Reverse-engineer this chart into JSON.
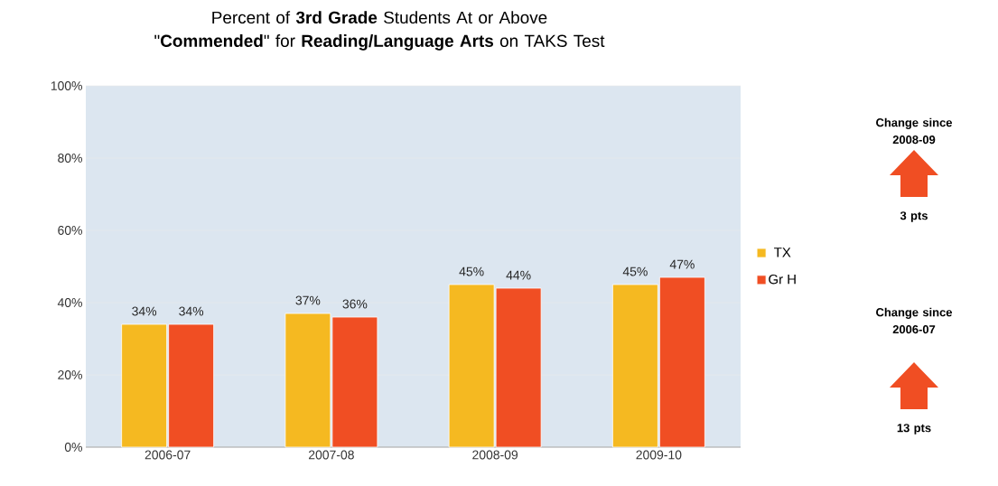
{
  "chart_data": {
    "type": "bar",
    "title": "Percent of **3rd Grade** Students At or Above \"**Commended**\" for **Reading/Language Arts** on TAKS Test",
    "categories": [
      "2006-07",
      "2007-08",
      "2008-09",
      "2009-10"
    ],
    "series": [
      {
        "name": "TX",
        "color": "#f5b921",
        "values": [
          34,
          37,
          45,
          45
        ],
        "value_labels": [
          "34%",
          "37%",
          "45%",
          "45%"
        ]
      },
      {
        "name": "Gr H",
        "color": "#f04e23",
        "values": [
          34,
          36,
          44,
          47
        ],
        "value_labels": [
          "34%",
          "36%",
          "44%",
          "47%"
        ]
      }
    ],
    "ylim": [
      0,
      100
    ],
    "yticks": [
      {
        "value": 0,
        "label": "0%"
      },
      {
        "value": 20,
        "label": "20%"
      },
      {
        "value": 40,
        "label": "40%"
      },
      {
        "value": 60,
        "label": "60%"
      },
      {
        "value": 80,
        "label": "80%"
      },
      {
        "value": 100,
        "label": "100%"
      }
    ],
    "grid": "y",
    "legend": "right",
    "annotations": [
      "Change since 2008-09",
      "3 pts",
      "Change since 2006-07",
      "13 pts"
    ]
  }
}
